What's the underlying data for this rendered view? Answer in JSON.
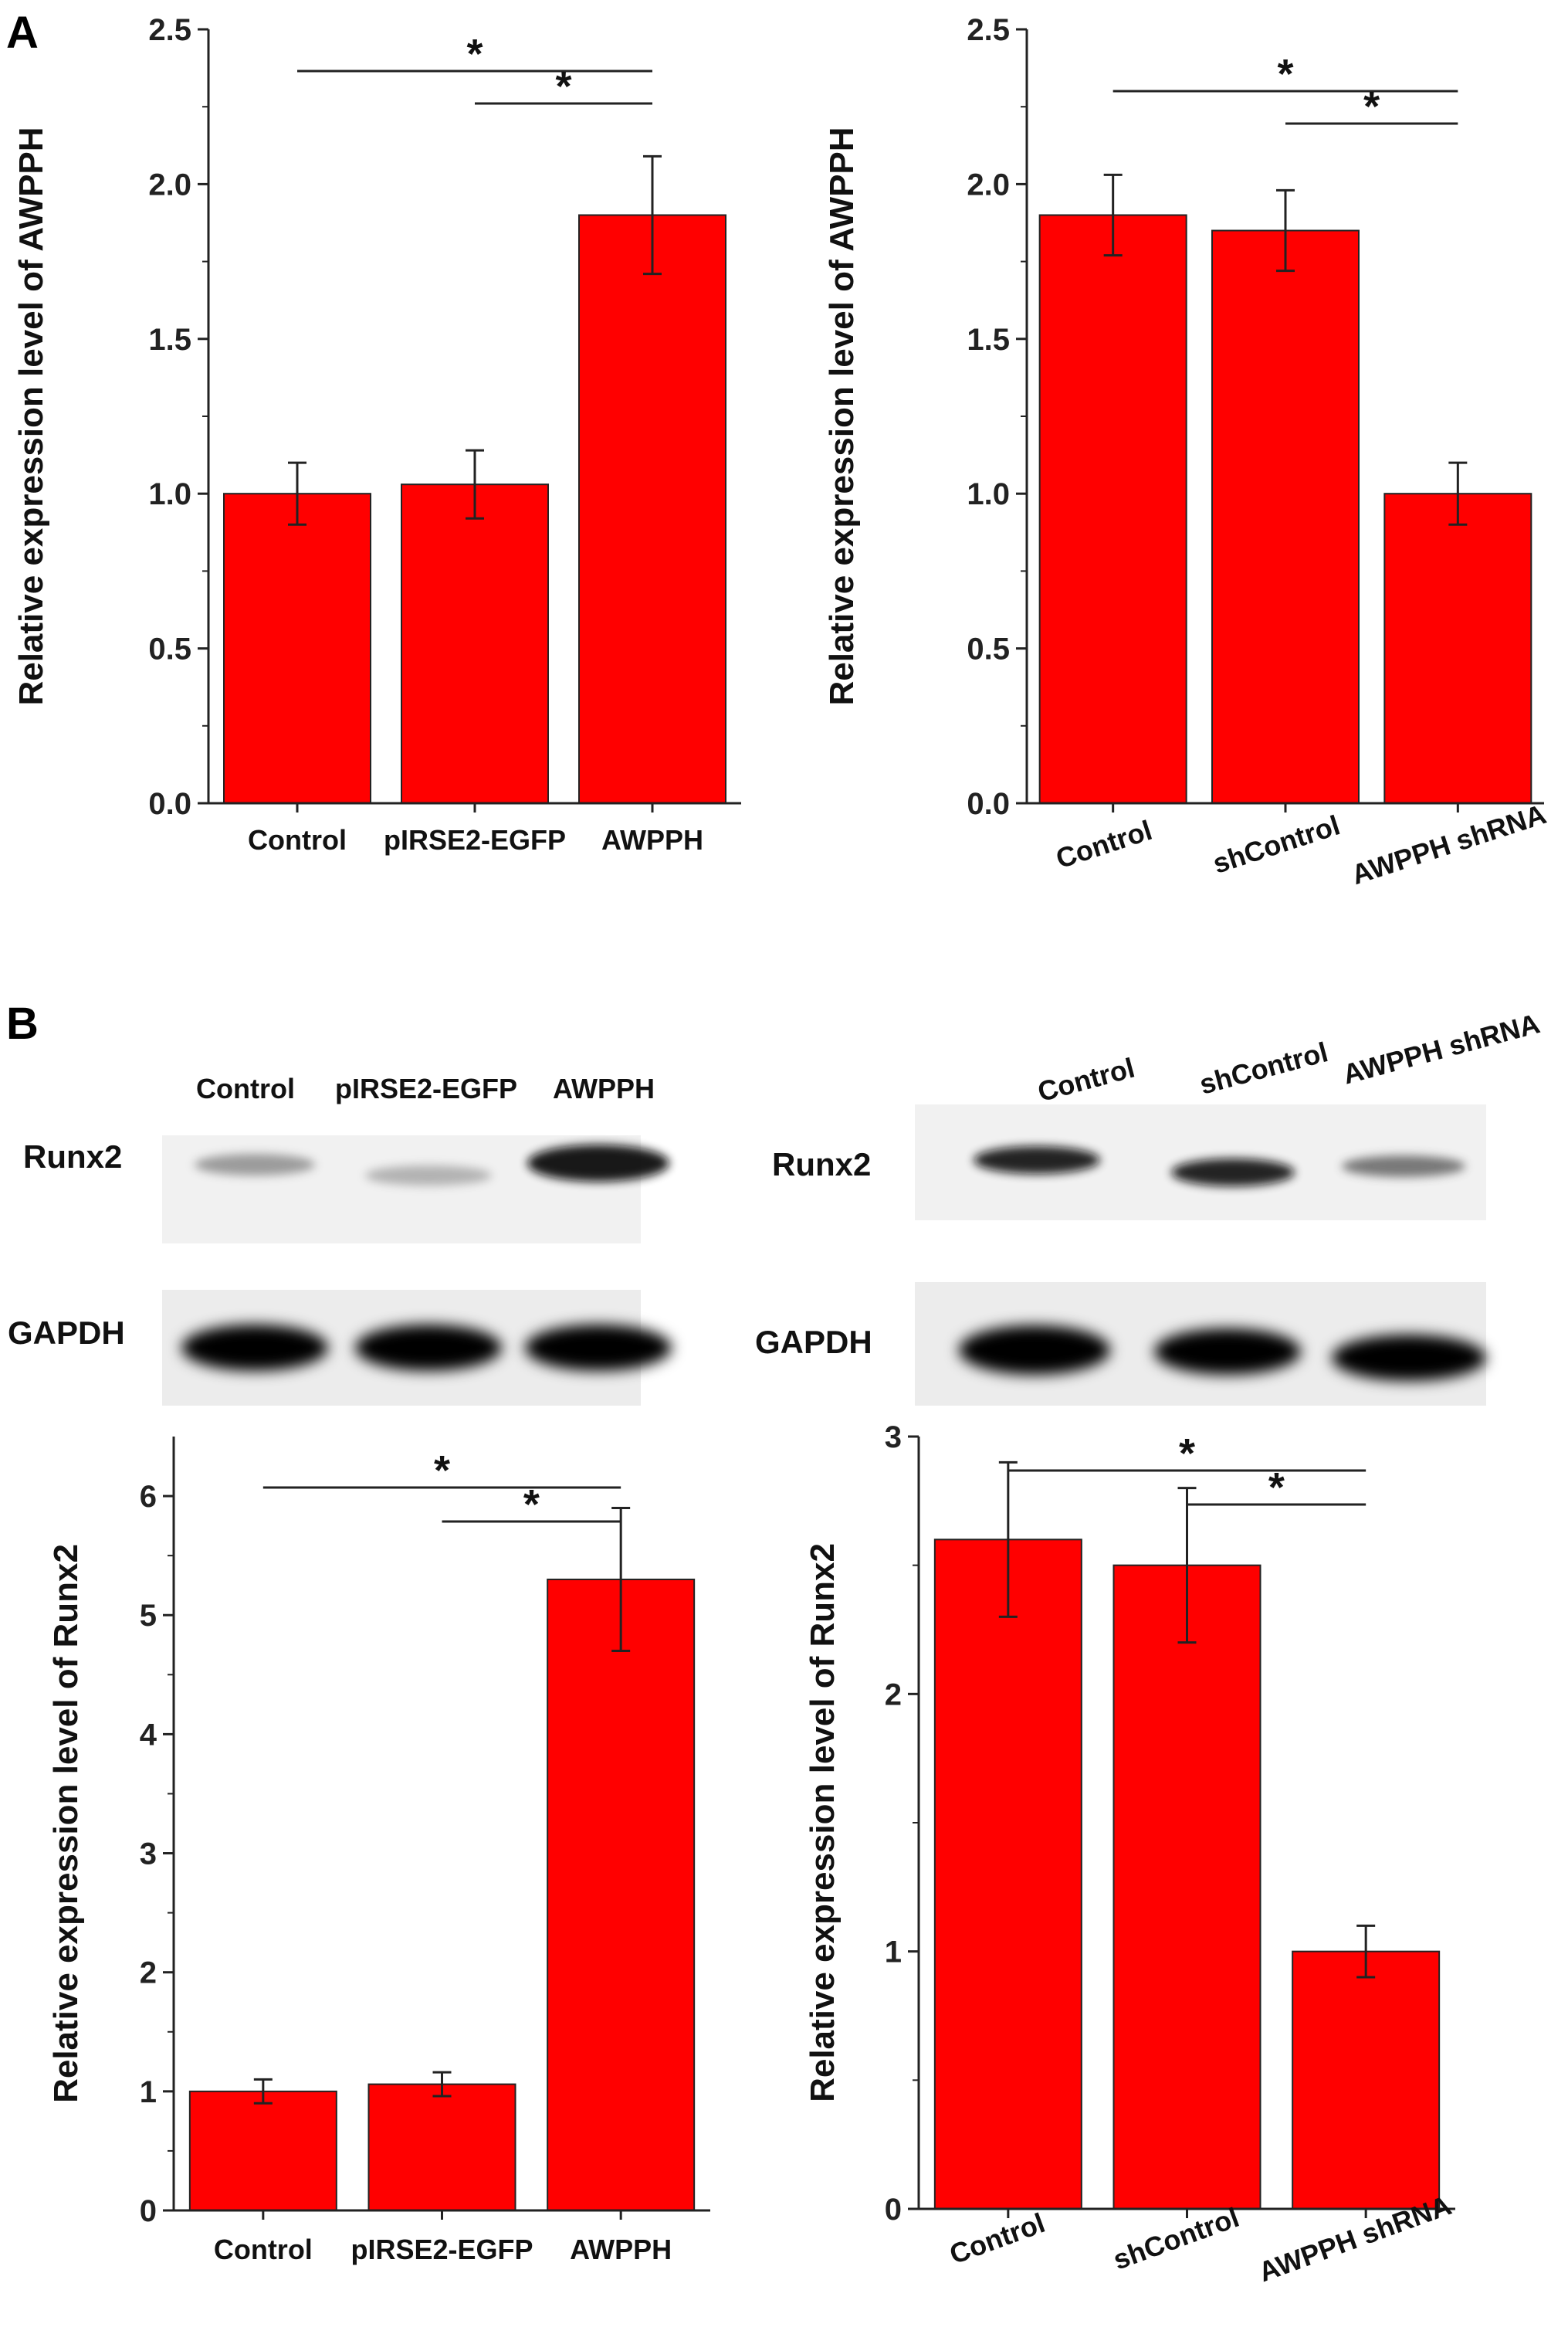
{
  "panels": {
    "a": "A",
    "b": "B"
  },
  "blots": [
    {
      "lanes": [
        "Control",
        "pIRSE2-EGFP",
        "AWPPH"
      ],
      "rows": [
        "Runx2",
        "GAPDH"
      ]
    },
    {
      "lanes": [
        "Control",
        "shControl",
        "AWPPH shRNA"
      ],
      "rows": [
        "Runx2",
        "GAPDH"
      ]
    }
  ],
  "chart_data": [
    {
      "type": "bar",
      "panel": "A",
      "categories": [
        "Control",
        "pIRSE2-EGFP",
        "AWPPH"
      ],
      "values": [
        1.0,
        1.03,
        1.9
      ],
      "errors": [
        0.1,
        0.11,
        0.19
      ],
      "ylabel": "Relative expression level of  AWPPH",
      "ylim": [
        0,
        2.5
      ],
      "yticks": [
        "0.0",
        "0.5",
        "1.0",
        "1.5",
        "2.0",
        "2.5"
      ],
      "significance": [
        {
          "from": 0,
          "to": 2,
          "label": "*"
        },
        {
          "from": 1,
          "to": 2,
          "label": "*"
        }
      ],
      "bar_color": "#ff0000"
    },
    {
      "type": "bar",
      "panel": "A",
      "categories": [
        "Control",
        "shControl",
        "AWPPH shRNA"
      ],
      "values": [
        1.9,
        1.85,
        1.0
      ],
      "errors": [
        0.13,
        0.13,
        0.1
      ],
      "ylabel": "Relative expression level of  AWPPH",
      "ylim": [
        0,
        2.5
      ],
      "yticks": [
        "0.0",
        "0.5",
        "1.0",
        "1.5",
        "2.0",
        "2.5"
      ],
      "significance": [
        {
          "from": 0,
          "to": 2,
          "label": "*"
        },
        {
          "from": 1,
          "to": 2,
          "label": "*"
        }
      ],
      "bar_color": "#ff0000"
    },
    {
      "type": "bar",
      "panel": "B",
      "categories": [
        "Control",
        "pIRSE2-EGFP",
        "AWPPH"
      ],
      "values": [
        1.0,
        1.06,
        5.3
      ],
      "errors": [
        0.1,
        0.1,
        0.6
      ],
      "ylabel": "Relative expression level of Runx2",
      "ylim": [
        0,
        6.5
      ],
      "yticks": [
        "0",
        "1",
        "2",
        "3",
        "4",
        "5",
        "6"
      ],
      "significance": [
        {
          "from": 0,
          "to": 2,
          "label": "*"
        },
        {
          "from": 1,
          "to": 2,
          "label": "*"
        }
      ],
      "bar_color": "#ff0000"
    },
    {
      "type": "bar",
      "panel": "B",
      "categories": [
        "Control",
        "shControl",
        "AWPPH shRNA"
      ],
      "values": [
        2.6,
        2.5,
        1.0
      ],
      "errors": [
        0.3,
        0.3,
        0.1
      ],
      "ylabel": "Relative expression level of Runx2",
      "ylim": [
        0,
        3.0
      ],
      "yticks": [
        "0",
        "1",
        "2",
        "3"
      ],
      "significance": [
        {
          "from": 0,
          "to": 2,
          "label": "*"
        },
        {
          "from": 1,
          "to": 2,
          "label": "*"
        }
      ],
      "bar_color": "#ff0000"
    }
  ]
}
